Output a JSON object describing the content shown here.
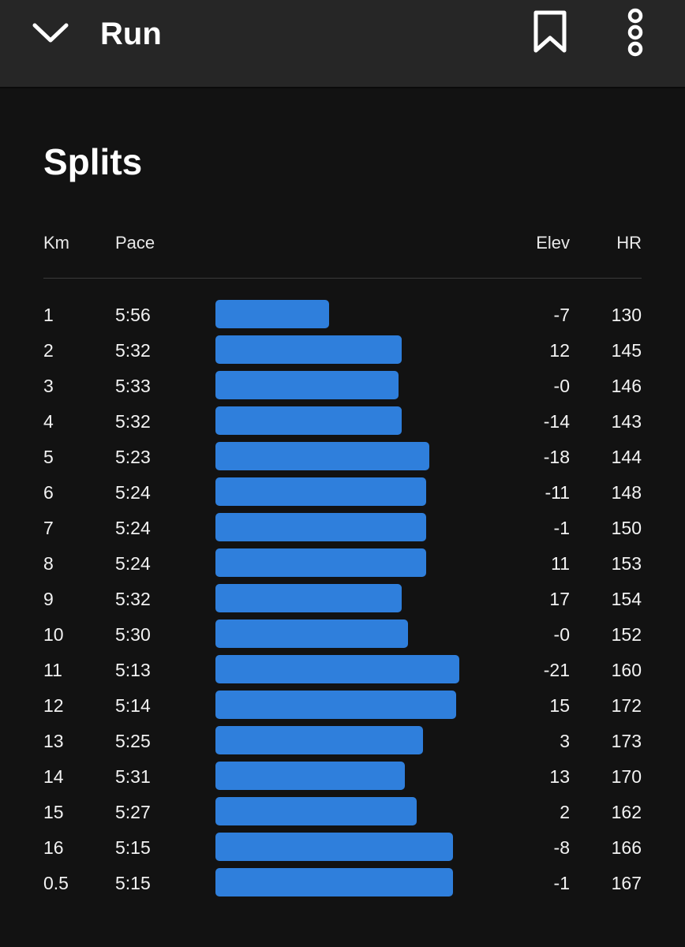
{
  "header": {
    "title": "Run",
    "back_icon": "chevron-down-icon",
    "bookmark_icon": "bookmark-icon",
    "more_icon": "more-vertical-icon"
  },
  "section": {
    "title": "Splits"
  },
  "columns": {
    "km": "Km",
    "pace": "Pace",
    "elev": "Elev",
    "hr": "HR"
  },
  "colors": {
    "bar": "#2f7fdc",
    "background": "#121212",
    "topbar": "#262626"
  },
  "splits": [
    {
      "km": "1",
      "pace": "5:56",
      "elev": "-7",
      "hr": "130"
    },
    {
      "km": "2",
      "pace": "5:32",
      "elev": "12",
      "hr": "145"
    },
    {
      "km": "3",
      "pace": "5:33",
      "elev": "-0",
      "hr": "146"
    },
    {
      "km": "4",
      "pace": "5:32",
      "elev": "-14",
      "hr": "143"
    },
    {
      "km": "5",
      "pace": "5:23",
      "elev": "-18",
      "hr": "144"
    },
    {
      "km": "6",
      "pace": "5:24",
      "elev": "-11",
      "hr": "148"
    },
    {
      "km": "7",
      "pace": "5:24",
      "elev": "-1",
      "hr": "150"
    },
    {
      "km": "8",
      "pace": "5:24",
      "elev": "11",
      "hr": "153"
    },
    {
      "km": "9",
      "pace": "5:32",
      "elev": "17",
      "hr": "154"
    },
    {
      "km": "10",
      "pace": "5:30",
      "elev": "-0",
      "hr": "152"
    },
    {
      "km": "11",
      "pace": "5:13",
      "elev": "-21",
      "hr": "160"
    },
    {
      "km": "12",
      "pace": "5:14",
      "elev": "15",
      "hr": "172"
    },
    {
      "km": "13",
      "pace": "5:25",
      "elev": "3",
      "hr": "173"
    },
    {
      "km": "14",
      "pace": "5:31",
      "elev": "13",
      "hr": "170"
    },
    {
      "km": "15",
      "pace": "5:27",
      "elev": "2",
      "hr": "162"
    },
    {
      "km": "16",
      "pace": "5:15",
      "elev": "-8",
      "hr": "166"
    },
    {
      "km": "0.5",
      "pace": "5:15",
      "elev": "-1",
      "hr": "167"
    }
  ]
}
